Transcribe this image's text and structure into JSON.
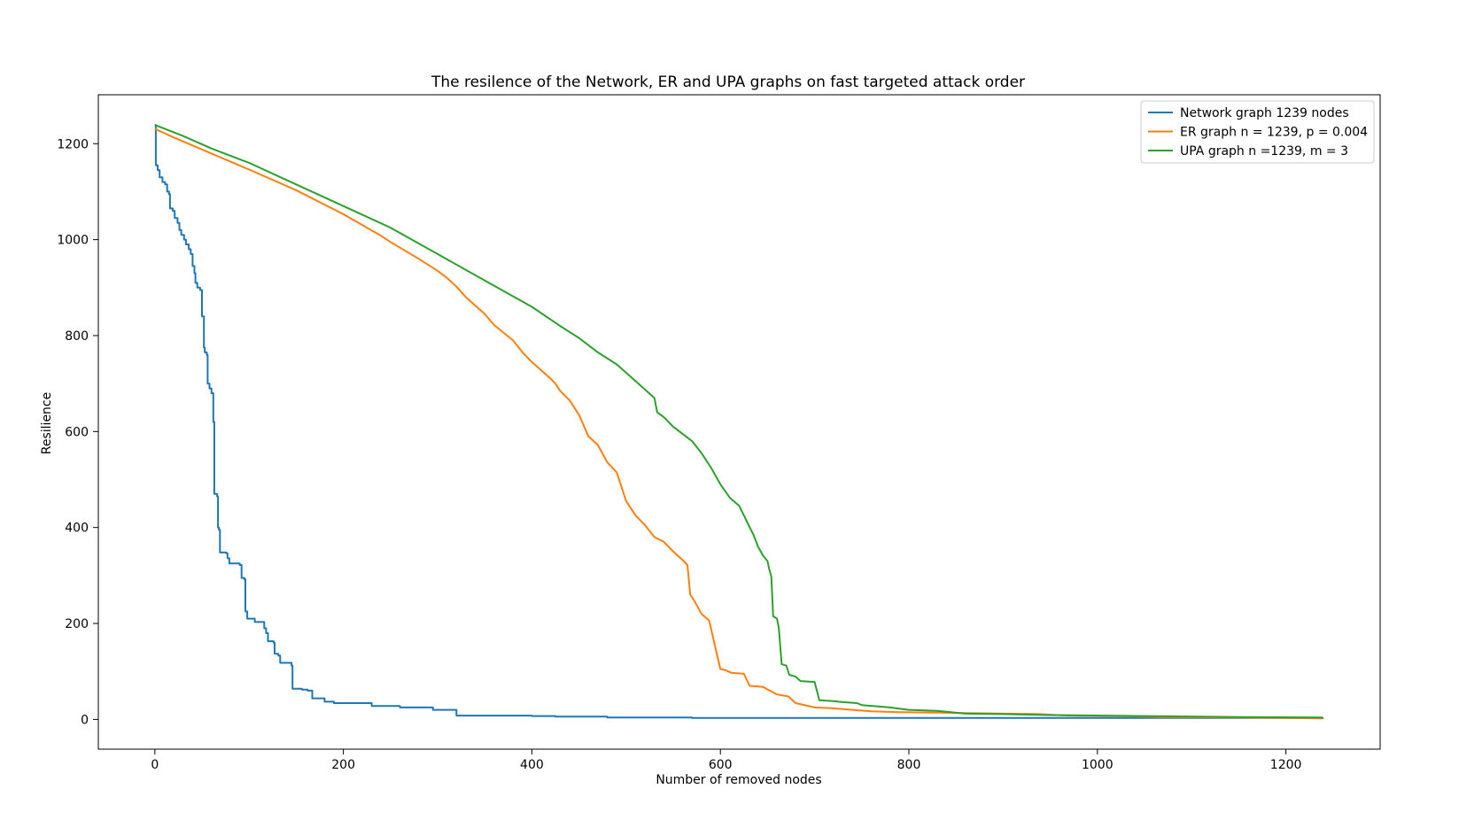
{
  "chart_data": {
    "type": "line",
    "title": "The resilence of the Network, ER and UPA graphs on fast targeted attack order",
    "xlabel": "Number of removed nodes",
    "ylabel": "Resilience",
    "xlim": [
      -60,
      1300
    ],
    "ylim": [
      -62,
      1302
    ],
    "xticks": [
      0,
      200,
      400,
      600,
      800,
      1000,
      1200
    ],
    "yticks": [
      0,
      200,
      400,
      600,
      800,
      1000,
      1200
    ],
    "grid": false,
    "legend_position": "top-right",
    "series": [
      {
        "name": "Network graph 1239 nodes",
        "color": "#1f77b4",
        "step": true,
        "points": [
          [
            0,
            1239
          ],
          [
            1,
            1155
          ],
          [
            3,
            1145
          ],
          [
            5,
            1130
          ],
          [
            8,
            1120
          ],
          [
            11,
            1115
          ],
          [
            13,
            1100
          ],
          [
            15,
            1095
          ],
          [
            16,
            1065
          ],
          [
            19,
            1060
          ],
          [
            21,
            1045
          ],
          [
            24,
            1035
          ],
          [
            26,
            1020
          ],
          [
            28,
            1010
          ],
          [
            31,
            1000
          ],
          [
            33,
            990
          ],
          [
            36,
            980
          ],
          [
            38,
            970
          ],
          [
            40,
            945
          ],
          [
            42,
            930
          ],
          [
            43,
            910
          ],
          [
            45,
            900
          ],
          [
            48,
            895
          ],
          [
            50,
            840
          ],
          [
            52,
            775
          ],
          [
            53,
            765
          ],
          [
            55,
            760
          ],
          [
            56,
            700
          ],
          [
            58,
            690
          ],
          [
            60,
            680
          ],
          [
            62,
            620
          ],
          [
            63,
            470
          ],
          [
            66,
            465
          ],
          [
            67,
            400
          ],
          [
            68,
            395
          ],
          [
            69,
            348
          ],
          [
            76,
            346
          ],
          [
            77,
            336
          ],
          [
            79,
            325
          ],
          [
            90,
            322
          ],
          [
            92,
            295
          ],
          [
            95,
            292
          ],
          [
            96,
            225
          ],
          [
            98,
            210
          ],
          [
            104,
            210
          ],
          [
            106,
            203
          ],
          [
            114,
            203
          ],
          [
            116,
            190
          ],
          [
            118,
            180
          ],
          [
            120,
            163
          ],
          [
            126,
            160
          ],
          [
            127,
            137
          ],
          [
            131,
            133
          ],
          [
            133,
            118
          ],
          [
            145,
            112
          ],
          [
            146,
            64
          ],
          [
            156,
            62
          ],
          [
            162,
            60
          ],
          [
            167,
            44
          ],
          [
            180,
            37
          ],
          [
            190,
            34
          ],
          [
            230,
            28
          ],
          [
            260,
            25
          ],
          [
            295,
            20
          ],
          [
            320,
            8
          ],
          [
            400,
            7
          ],
          [
            425,
            6
          ],
          [
            480,
            4
          ],
          [
            570,
            3
          ],
          [
            1239,
            1
          ]
        ]
      },
      {
        "name": "ER graph n = 1239, p = 0.004",
        "color": "#ff7f0e",
        "step": false,
        "points": [
          [
            0,
            1231
          ],
          [
            20,
            1213
          ],
          [
            50,
            1188
          ],
          [
            100,
            1146
          ],
          [
            150,
            1103
          ],
          [
            180,
            1073
          ],
          [
            200,
            1053
          ],
          [
            240,
            1008
          ],
          [
            250,
            995
          ],
          [
            280,
            960
          ],
          [
            300,
            935
          ],
          [
            310,
            920
          ],
          [
            320,
            902
          ],
          [
            330,
            880
          ],
          [
            350,
            845
          ],
          [
            360,
            822
          ],
          [
            380,
            790
          ],
          [
            390,
            765
          ],
          [
            400,
            745
          ],
          [
            420,
            710
          ],
          [
            425,
            700
          ],
          [
            430,
            685
          ],
          [
            440,
            665
          ],
          [
            450,
            635
          ],
          [
            460,
            590
          ],
          [
            470,
            572
          ],
          [
            480,
            536
          ],
          [
            490,
            515
          ],
          [
            500,
            455
          ],
          [
            510,
            425
          ],
          [
            520,
            405
          ],
          [
            530,
            380
          ],
          [
            540,
            370
          ],
          [
            550,
            350
          ],
          [
            560,
            332
          ],
          [
            565,
            322
          ],
          [
            568,
            260
          ],
          [
            573,
            245
          ],
          [
            580,
            220
          ],
          [
            588,
            206
          ],
          [
            600,
            105
          ],
          [
            605,
            103
          ],
          [
            612,
            97
          ],
          [
            625,
            95
          ],
          [
            631,
            70
          ],
          [
            645,
            68
          ],
          [
            660,
            52
          ],
          [
            672,
            48
          ],
          [
            680,
            34
          ],
          [
            700,
            25
          ],
          [
            720,
            23
          ],
          [
            740,
            20
          ],
          [
            760,
            17
          ],
          [
            790,
            15
          ],
          [
            830,
            14
          ],
          [
            870,
            13
          ],
          [
            900,
            12
          ],
          [
            937,
            11
          ],
          [
            968,
            8
          ],
          [
            1020,
            7
          ],
          [
            1070,
            5
          ],
          [
            1140,
            4
          ],
          [
            1239,
            2
          ]
        ]
      },
      {
        "name": "UPA graph n =1239, m = 3",
        "color": "#2ca02c",
        "step": false,
        "points": [
          [
            0,
            1239
          ],
          [
            30,
            1216
          ],
          [
            60,
            1190
          ],
          [
            100,
            1160
          ],
          [
            150,
            1115
          ],
          [
            200,
            1070
          ],
          [
            250,
            1025
          ],
          [
            300,
            970
          ],
          [
            350,
            915
          ],
          [
            400,
            860
          ],
          [
            430,
            820
          ],
          [
            450,
            795
          ],
          [
            470,
            765
          ],
          [
            490,
            740
          ],
          [
            510,
            705
          ],
          [
            530,
            670
          ],
          [
            533,
            640
          ],
          [
            540,
            630
          ],
          [
            550,
            610
          ],
          [
            570,
            580
          ],
          [
            580,
            555
          ],
          [
            590,
            525
          ],
          [
            600,
            490
          ],
          [
            610,
            462
          ],
          [
            620,
            445
          ],
          [
            630,
            405
          ],
          [
            635,
            385
          ],
          [
            640,
            360
          ],
          [
            645,
            342
          ],
          [
            650,
            330
          ],
          [
            652,
            312
          ],
          [
            654,
            298
          ],
          [
            656,
            215
          ],
          [
            660,
            210
          ],
          [
            662,
            190
          ],
          [
            665,
            115
          ],
          [
            670,
            112
          ],
          [
            673,
            93
          ],
          [
            680,
            89
          ],
          [
            685,
            80
          ],
          [
            700,
            78
          ],
          [
            705,
            40
          ],
          [
            720,
            38
          ],
          [
            730,
            36
          ],
          [
            745,
            34
          ],
          [
            750,
            30
          ],
          [
            780,
            25
          ],
          [
            800,
            20
          ],
          [
            830,
            18
          ],
          [
            860,
            12
          ],
          [
            900,
            11
          ],
          [
            950,
            9
          ],
          [
            1050,
            7
          ],
          [
            1150,
            5
          ],
          [
            1239,
            4
          ]
        ]
      }
    ]
  }
}
